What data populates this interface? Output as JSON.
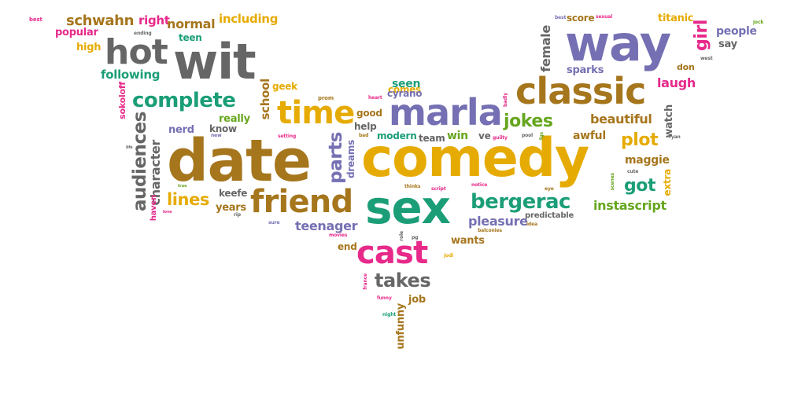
{
  "palette": {
    "gold": "#e6ab02",
    "brown": "#a6761d",
    "gray": "#666666",
    "purple": "#7570b3",
    "pink": "#e7298a",
    "green": "#1b9e77",
    "lime": "#66a61e",
    "orange": "#d95f02"
  },
  "words": {
    "best": "best",
    "schwahn": "schwahn",
    "right": "right",
    "normal": "normal",
    "including": "including",
    "popular": "popular",
    "ending": "ending",
    "teen": "teen",
    "hot": "hot",
    "wit": "wit",
    "high": "high",
    "following": "following",
    "complete": "complete",
    "sokoloff": "sokoloff",
    "audiences": "audiences",
    "character": "character",
    "nerd": "nerd",
    "really": "really",
    "know": "know",
    "date": "date",
    "school": "school",
    "time": "time",
    "geek": "geek",
    "prom": "prom",
    "heart": "heart",
    "good": "good",
    "help": "help",
    "bad": "bad",
    "setting": "setting",
    "new": "new",
    "life": "life",
    "true": "true",
    "haven": "haven",
    "love": "love",
    "lines": "lines",
    "years": "years",
    "keefe": "keefe",
    "rip": "rip",
    "friend": "friend",
    "parts": "parts",
    "dreams": "dreams",
    "sure": "sure",
    "teenager": "teenager",
    "movies": "movies",
    "end": "end",
    "comes": "comes",
    "seen": "seen",
    "cyrano": "cyrano",
    "marla": "marla",
    "modern": "modern",
    "team": "team",
    "win": "win",
    "ve": "ve",
    "comedy": "comedy",
    "thinks": "thinks",
    "script": "script",
    "sex": "sex",
    "role": "role",
    "pg": "pg",
    "cast": "cast",
    "jodi": "jodi",
    "france": "france",
    "takes": "takes",
    "funny": "funny",
    "job": "job",
    "night": "night",
    "unfunny": "unfunny",
    "wants": "wants",
    "pleasure": "pleasure",
    "balconies": "balconies",
    "idea": "idea",
    "bergerac": "bergerac",
    "predictable": "predictable",
    "notice": "notice",
    "eye": "eye",
    "jokes": "jokes",
    "guilty": "guilty",
    "pool": "pool",
    "badly": "badly",
    "way": "way",
    "classic": "classic",
    "female": "female",
    "fgs": "fgs",
    "score": "score",
    "sexual": "sexual",
    "titanic": "titanic",
    "girl": "girl",
    "people": "people",
    "say": "say",
    "jock": "jock",
    "sparks": "sparks",
    "west": "west",
    "don": "don",
    "laugh": "laugh",
    "beautiful": "beautiful",
    "watch": "watch",
    "awful": "awful",
    "plot": "plot",
    "maggie": "maggie",
    "ryan": "ryan",
    "cute": "cute",
    "got": "got",
    "scenes": "scenes",
    "extra": "extra",
    "instascript": "instascript"
  }
}
